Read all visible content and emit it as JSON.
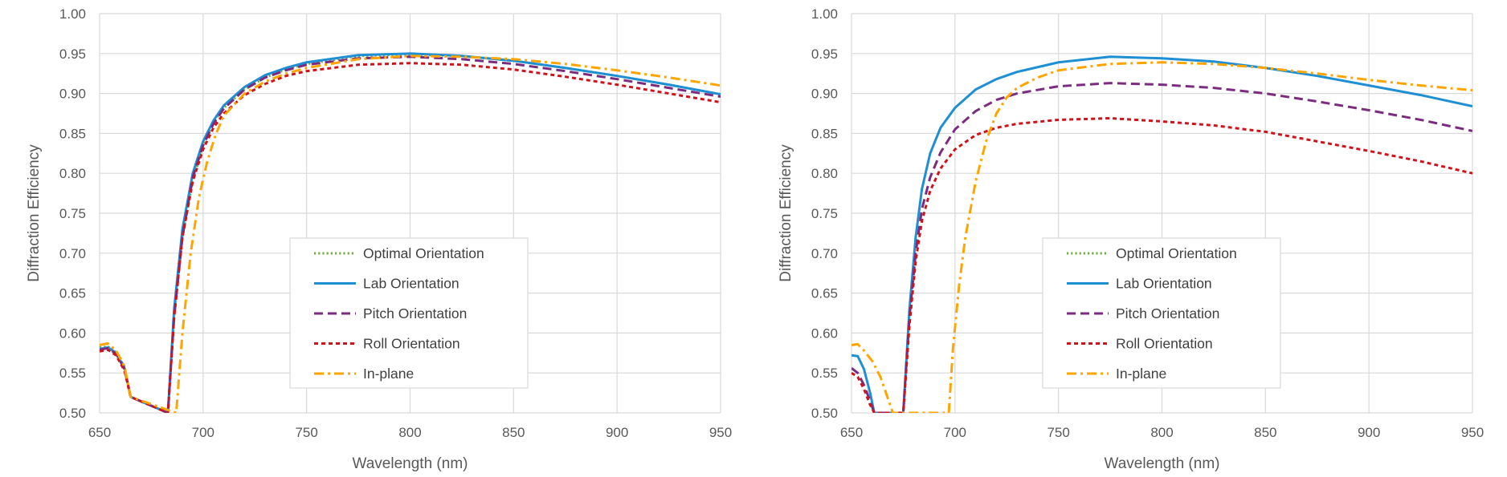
{
  "chart_data": [
    {
      "type": "line",
      "title": "",
      "xlabel": "Wavelength (nm)",
      "ylabel": "Diffraction Efficiency",
      "xlim": [
        650,
        950
      ],
      "ylim": [
        0.5,
        1.0
      ],
      "xticks": [
        "650",
        "700",
        "750",
        "800",
        "850",
        "900",
        "950"
      ],
      "yticks": [
        "0.50",
        "0.55",
        "0.60",
        "0.65",
        "0.70",
        "0.75",
        "0.80",
        "0.85",
        "0.90",
        "0.95",
        "1.00"
      ],
      "grid": true,
      "legend_position": "center-bottom",
      "series": [
        {
          "name": "Optimal Orientation",
          "color": "#70ad47",
          "dash": "dotted",
          "x": [
            650,
            654,
            658,
            662,
            665,
            683,
            686,
            690,
            695,
            700,
            705,
            710,
            720,
            730,
            740,
            750,
            775,
            800,
            825,
            850,
            875,
            900,
            925,
            950
          ],
          "y": [
            0.582,
            0.583,
            0.576,
            0.558,
            0.52,
            0.5,
            0.62,
            0.72,
            0.79,
            0.835,
            0.864,
            0.882,
            0.905,
            0.92,
            0.93,
            0.937,
            0.947,
            0.949,
            0.947,
            0.941,
            0.932,
            0.922,
            0.911,
            0.899
          ]
        },
        {
          "name": "Lab Orientation",
          "color": "#1f8fd4",
          "dash": "solid",
          "x": [
            650,
            654,
            658,
            662,
            665,
            683,
            686,
            690,
            695,
            700,
            705,
            710,
            720,
            730,
            740,
            750,
            775,
            800,
            825,
            850,
            875,
            900,
            925,
            950
          ],
          "y": [
            0.58,
            0.582,
            0.575,
            0.556,
            0.52,
            0.5,
            0.63,
            0.73,
            0.8,
            0.84,
            0.866,
            0.885,
            0.908,
            0.923,
            0.932,
            0.939,
            0.948,
            0.95,
            0.947,
            0.941,
            0.932,
            0.922,
            0.911,
            0.899
          ]
        },
        {
          "name": "Pitch Orientation",
          "color": "#7b2c7e",
          "dash": "dashed",
          "x": [
            650,
            654,
            658,
            662,
            665,
            683,
            686,
            690,
            695,
            700,
            705,
            710,
            720,
            730,
            740,
            750,
            775,
            800,
            825,
            850,
            875,
            900,
            925,
            950
          ],
          "y": [
            0.579,
            0.581,
            0.574,
            0.555,
            0.52,
            0.5,
            0.62,
            0.72,
            0.795,
            0.835,
            0.862,
            0.881,
            0.905,
            0.92,
            0.929,
            0.936,
            0.944,
            0.946,
            0.943,
            0.937,
            0.928,
            0.918,
            0.907,
            0.896
          ]
        },
        {
          "name": "Roll Orientation",
          "color": "#d0121b",
          "dash": "short-dashed",
          "x": [
            650,
            654,
            658,
            662,
            665,
            683,
            686,
            690,
            695,
            700,
            705,
            710,
            720,
            730,
            740,
            750,
            775,
            800,
            825,
            850,
            875,
            900,
            925,
            950
          ],
          "y": [
            0.577,
            0.579,
            0.572,
            0.553,
            0.52,
            0.5,
            0.62,
            0.72,
            0.79,
            0.83,
            0.857,
            0.875,
            0.898,
            0.912,
            0.922,
            0.928,
            0.936,
            0.938,
            0.936,
            0.93,
            0.921,
            0.911,
            0.9,
            0.889
          ]
        },
        {
          "name": "In-plane",
          "color": "#ffa500",
          "dash": "dash-dot",
          "x": [
            650,
            654,
            658,
            662,
            665,
            687,
            690,
            694,
            698,
            702,
            706,
            710,
            720,
            730,
            740,
            750,
            775,
            800,
            825,
            850,
            875,
            900,
            925,
            950
          ],
          "y": [
            0.585,
            0.587,
            0.578,
            0.558,
            0.52,
            0.5,
            0.6,
            0.7,
            0.77,
            0.815,
            0.848,
            0.872,
            0.9,
            0.915,
            0.925,
            0.932,
            0.943,
            0.947,
            0.946,
            0.943,
            0.937,
            0.929,
            0.92,
            0.91
          ]
        }
      ]
    },
    {
      "type": "line",
      "title": "",
      "xlabel": "Wavelength (nm)",
      "ylabel": "Diffraction Efficiency",
      "xlim": [
        650,
        950
      ],
      "ylim": [
        0.5,
        1.0
      ],
      "xticks": [
        "650",
        "700",
        "750",
        "800",
        "850",
        "900",
        "950"
      ],
      "yticks": [
        "0.50",
        "0.55",
        "0.60",
        "0.65",
        "0.70",
        "0.75",
        "0.80",
        "0.85",
        "0.90",
        "0.95",
        "1.00"
      ],
      "grid": true,
      "legend_position": "center-bottom",
      "series": [
        {
          "name": "Optimal Orientation",
          "color": "#70ad47",
          "dash": "dotted",
          "x": [],
          "y": []
        },
        {
          "name": "Lab Orientation",
          "color": "#1f8fd4",
          "dash": "solid",
          "x": [
            650,
            653,
            656,
            659,
            661,
            675,
            678,
            681,
            684,
            688,
            693,
            700,
            710,
            720,
            730,
            750,
            775,
            800,
            825,
            850,
            875,
            900,
            925,
            950
          ],
          "y": [
            0.572,
            0.571,
            0.555,
            0.525,
            0.5,
            0.5,
            0.63,
            0.72,
            0.78,
            0.825,
            0.857,
            0.882,
            0.905,
            0.918,
            0.927,
            0.939,
            0.946,
            0.944,
            0.94,
            0.932,
            0.922,
            0.91,
            0.898,
            0.884
          ]
        },
        {
          "name": "Pitch Orientation",
          "color": "#7b2c7e",
          "dash": "dashed",
          "x": [
            650,
            653,
            656,
            659,
            661,
            675,
            678,
            681,
            684,
            688,
            693,
            700,
            710,
            720,
            730,
            750,
            775,
            800,
            825,
            850,
            875,
            900,
            925,
            950
          ],
          "y": [
            0.556,
            0.55,
            0.535,
            0.515,
            0.5,
            0.5,
            0.62,
            0.7,
            0.755,
            0.795,
            0.826,
            0.855,
            0.878,
            0.892,
            0.9,
            0.909,
            0.913,
            0.911,
            0.907,
            0.9,
            0.89,
            0.879,
            0.867,
            0.853
          ]
        },
        {
          "name": "Roll Orientation",
          "color": "#d0121b",
          "dash": "short-dashed",
          "x": [
            650,
            653,
            656,
            659,
            661,
            675,
            678,
            681,
            684,
            688,
            693,
            700,
            710,
            720,
            730,
            750,
            775,
            800,
            825,
            850,
            875,
            900,
            925,
            950
          ],
          "y": [
            0.55,
            0.545,
            0.53,
            0.51,
            0.5,
            0.5,
            0.61,
            0.69,
            0.74,
            0.778,
            0.806,
            0.83,
            0.848,
            0.857,
            0.862,
            0.867,
            0.869,
            0.865,
            0.86,
            0.852,
            0.84,
            0.828,
            0.815,
            0.8
          ]
        },
        {
          "name": "In-plane",
          "color": "#ffa500",
          "dash": "dash-dot",
          "x": [
            650,
            653,
            656,
            660,
            664,
            668,
            670,
            697,
            699,
            702,
            705,
            710,
            715,
            720,
            725,
            730,
            740,
            750,
            775,
            800,
            825,
            850,
            875,
            900,
            925,
            950
          ],
          "y": [
            0.585,
            0.586,
            0.578,
            0.565,
            0.545,
            0.515,
            0.5,
            0.5,
            0.58,
            0.66,
            0.72,
            0.79,
            0.84,
            0.875,
            0.895,
            0.907,
            0.92,
            0.929,
            0.937,
            0.939,
            0.937,
            0.932,
            0.925,
            0.917,
            0.91,
            0.904
          ]
        }
      ]
    }
  ]
}
